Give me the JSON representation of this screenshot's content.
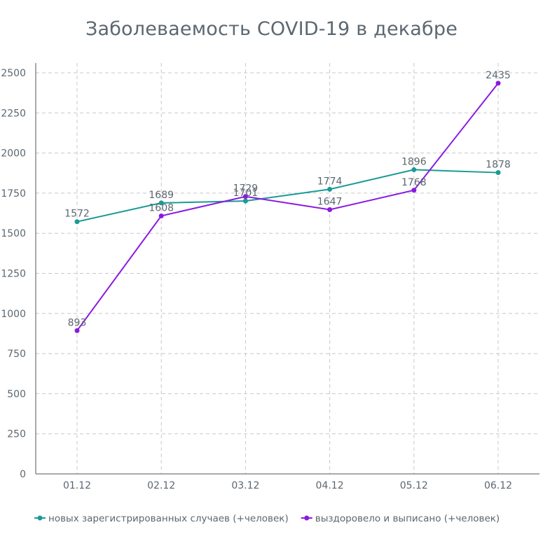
{
  "chart_data": {
    "type": "line",
    "title": "Заболеваемость COVID-19 в декабре",
    "categories": [
      "01.12",
      "02.12",
      "03.12",
      "04.12",
      "05.12",
      "06.12"
    ],
    "yticks": [
      "0",
      "250",
      "500",
      "750",
      "1000",
      "1250",
      "1500",
      "1750",
      "2000",
      "2250",
      "2500"
    ],
    "ylim": [
      0,
      2500
    ],
    "grid": true,
    "legend_position": "bottom",
    "series": [
      {
        "name": "новых зарегистрированных случаев (+человек)",
        "color": "#1a9a96",
        "values": [
          1572,
          1689,
          1701,
          1774,
          1896,
          1878
        ],
        "labels": [
          "1572",
          "1689",
          "1701",
          "1774",
          "1896",
          "1878"
        ]
      },
      {
        "name": "выздоровело и выписано (+человек)",
        "color": "#8a1ae0",
        "values": [
          893,
          1608,
          1729,
          1647,
          1768,
          2435
        ],
        "labels": [
          "893",
          "1608",
          "1729",
          "1647",
          "1768",
          "2435"
        ]
      }
    ]
  }
}
